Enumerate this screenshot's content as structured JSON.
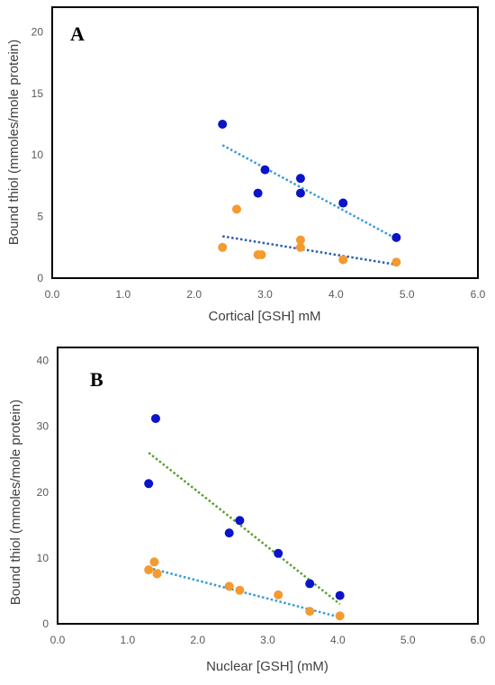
{
  "colors": {
    "blue_points": "#0a14c8",
    "orange_points": "#f59a30",
    "blue_trend_light": "#3a9bd6",
    "blue_trend_dark": "#2e5fa8",
    "green_trend": "#5aa02c",
    "frame": "#000000",
    "tick_text": "#595959"
  },
  "chart_data": [
    {
      "type": "scatter",
      "panel_label": "A",
      "xlabel": "Cortical [GSH] mM",
      "ylabel": "Bound thiol (mmoles/mole protein)",
      "xlim": [
        0,
        6
      ],
      "ylim": [
        0,
        22
      ],
      "x_ticks": [
        "0.0",
        "1.0",
        "2.0",
        "3.0",
        "4.0",
        "5.0",
        "6.0"
      ],
      "y_ticks": [
        "0",
        "5",
        "10",
        "15",
        "20"
      ],
      "grid": false,
      "series": [
        {
          "color": "#0a14c8",
          "points": [
            [
              2.4,
              12.5
            ],
            [
              2.9,
              6.9
            ],
            [
              3.0,
              8.8
            ],
            [
              3.5,
              8.1
            ],
            [
              3.5,
              6.9
            ],
            [
              4.1,
              6.1
            ],
            [
              4.85,
              3.3
            ]
          ],
          "trendline": {
            "from": [
              2.4,
              10.8
            ],
            "to": [
              4.85,
              3.2
            ],
            "color": "#3a9bd6"
          }
        },
        {
          "color": "#f59a30",
          "points": [
            [
              2.4,
              2.5
            ],
            [
              2.6,
              5.6
            ],
            [
              2.9,
              1.9
            ],
            [
              2.95,
              1.9
            ],
            [
              3.5,
              3.1
            ],
            [
              3.5,
              2.5
            ],
            [
              4.1,
              1.5
            ],
            [
              4.85,
              1.3
            ]
          ],
          "trendline": {
            "from": [
              2.4,
              3.4
            ],
            "to": [
              4.85,
              1.1
            ],
            "color": "#2e5fa8"
          }
        }
      ]
    },
    {
      "type": "scatter",
      "panel_label": "B",
      "xlabel": "Nuclear [GSH] (mM)",
      "ylabel": "Bound thiol (mmoles/mole protein)",
      "xlim": [
        0,
        6
      ],
      "ylim": [
        0,
        42
      ],
      "x_ticks": [
        "0.0",
        "1.0",
        "2.0",
        "3.0",
        "4.0",
        "5.0",
        "6.0"
      ],
      "y_ticks": [
        "0",
        "10",
        "20",
        "30",
        "40"
      ],
      "grid": false,
      "series": [
        {
          "color": "#0a14c8",
          "points": [
            [
              1.3,
              21.3
            ],
            [
              1.4,
              31.2
            ],
            [
              2.45,
              13.8
            ],
            [
              2.6,
              15.7
            ],
            [
              3.15,
              10.7
            ],
            [
              3.6,
              6.1
            ],
            [
              4.03,
              4.3
            ]
          ],
          "trendline": {
            "from": [
              1.3,
              26.0
            ],
            "to": [
              4.03,
              3.0
            ],
            "color": "#5aa02c"
          }
        },
        {
          "color": "#f59a30",
          "points": [
            [
              1.3,
              8.2
            ],
            [
              1.38,
              9.4
            ],
            [
              1.42,
              7.6
            ],
            [
              2.45,
              5.7
            ],
            [
              2.6,
              5.1
            ],
            [
              3.15,
              4.4
            ],
            [
              3.6,
              1.9
            ],
            [
              4.03,
              1.2
            ]
          ],
          "trendline": {
            "from": [
              1.3,
              8.5
            ],
            "to": [
              4.03,
              1.0
            ],
            "color": "#3a9bd6"
          }
        }
      ]
    }
  ]
}
